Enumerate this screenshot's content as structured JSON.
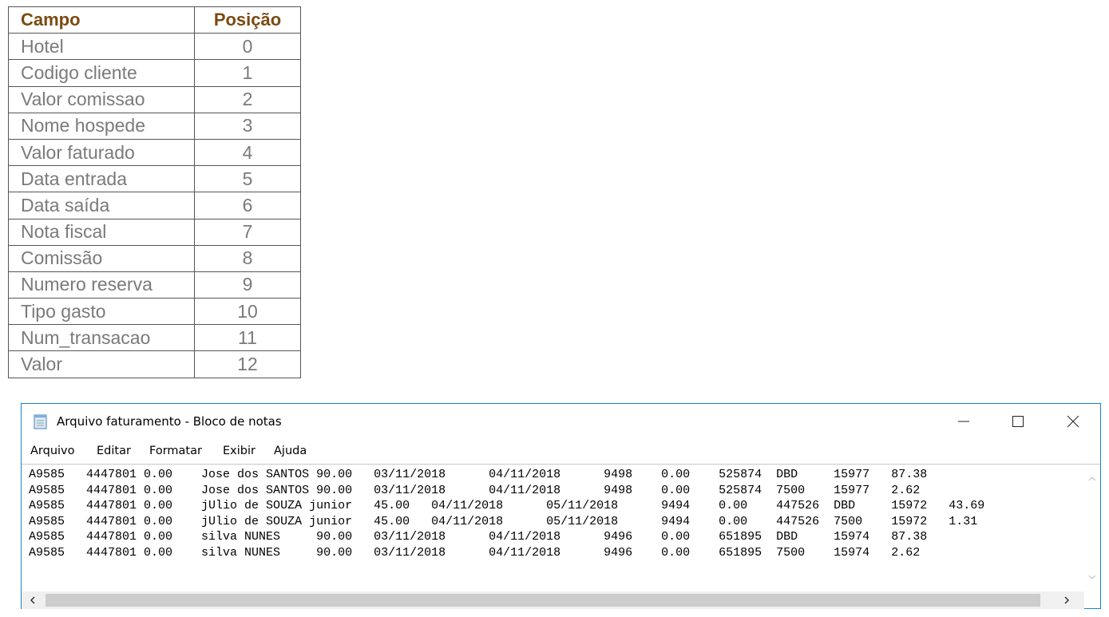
{
  "table": {
    "header": [
      "Campo",
      "Posição"
    ],
    "rows": [
      [
        "Hotel",
        0
      ],
      [
        "Codigo cliente",
        1
      ],
      [
        "Valor comissao",
        2
      ],
      [
        "Nome hospede",
        3
      ],
      [
        "Valor faturado",
        4
      ],
      [
        "Data entrada",
        5
      ],
      [
        "Data saída",
        6
      ],
      [
        "Nota fiscal",
        7
      ],
      [
        "Comissão",
        8
      ],
      [
        "Numero reserva",
        9
      ],
      [
        "Tipo gasto",
        10
      ],
      [
        "Num_transacao",
        11
      ],
      [
        "Valor",
        12
      ]
    ]
  },
  "notepad": {
    "title": "Arquivo faturamento - Bloco de notas",
    "menu": [
      "Arquivo",
      "Editar",
      "Formatar",
      "Exibir",
      "Ajuda"
    ],
    "lines": [
      "A9585\t4447801\t0.00\tJose dos SANTOS\t90.00\t03/11/2018\t04/11/2018\t9498\t0.00\t525874\tDBD\t15977\t87.38",
      "A9585\t4447801\t0.00\tJose dos SANTOS\t90.00\t03/11/2018\t04/11/2018\t9498\t0.00\t525874\t7500\t15977\t2.62",
      "A9585\t4447801\t0.00\tjUlio de SOUZA junior\t45.00\t04/11/2018\t05/11/2018\t9494\t0.00\t447526\tDBD\t15972\t43.69",
      "A9585\t4447801\t0.00\tjUlio de SOUZA junior\t45.00\t04/11/2018\t05/11/2018\t9494\t0.00\t447526\t7500\t15972\t1.31",
      "A9585\t4447801\t0.00\tsilva NUNES\t90.00\t03/11/2018\t04/11/2018\t9496\t0.00\t651895\tDBD\t15974\t87.38",
      "A9585\t4447801\t0.00\tsilva NUNES\t90.00\t03/11/2018\t04/11/2018\t9496\t0.00\t651895\t7500\t15974\t2.62"
    ]
  }
}
